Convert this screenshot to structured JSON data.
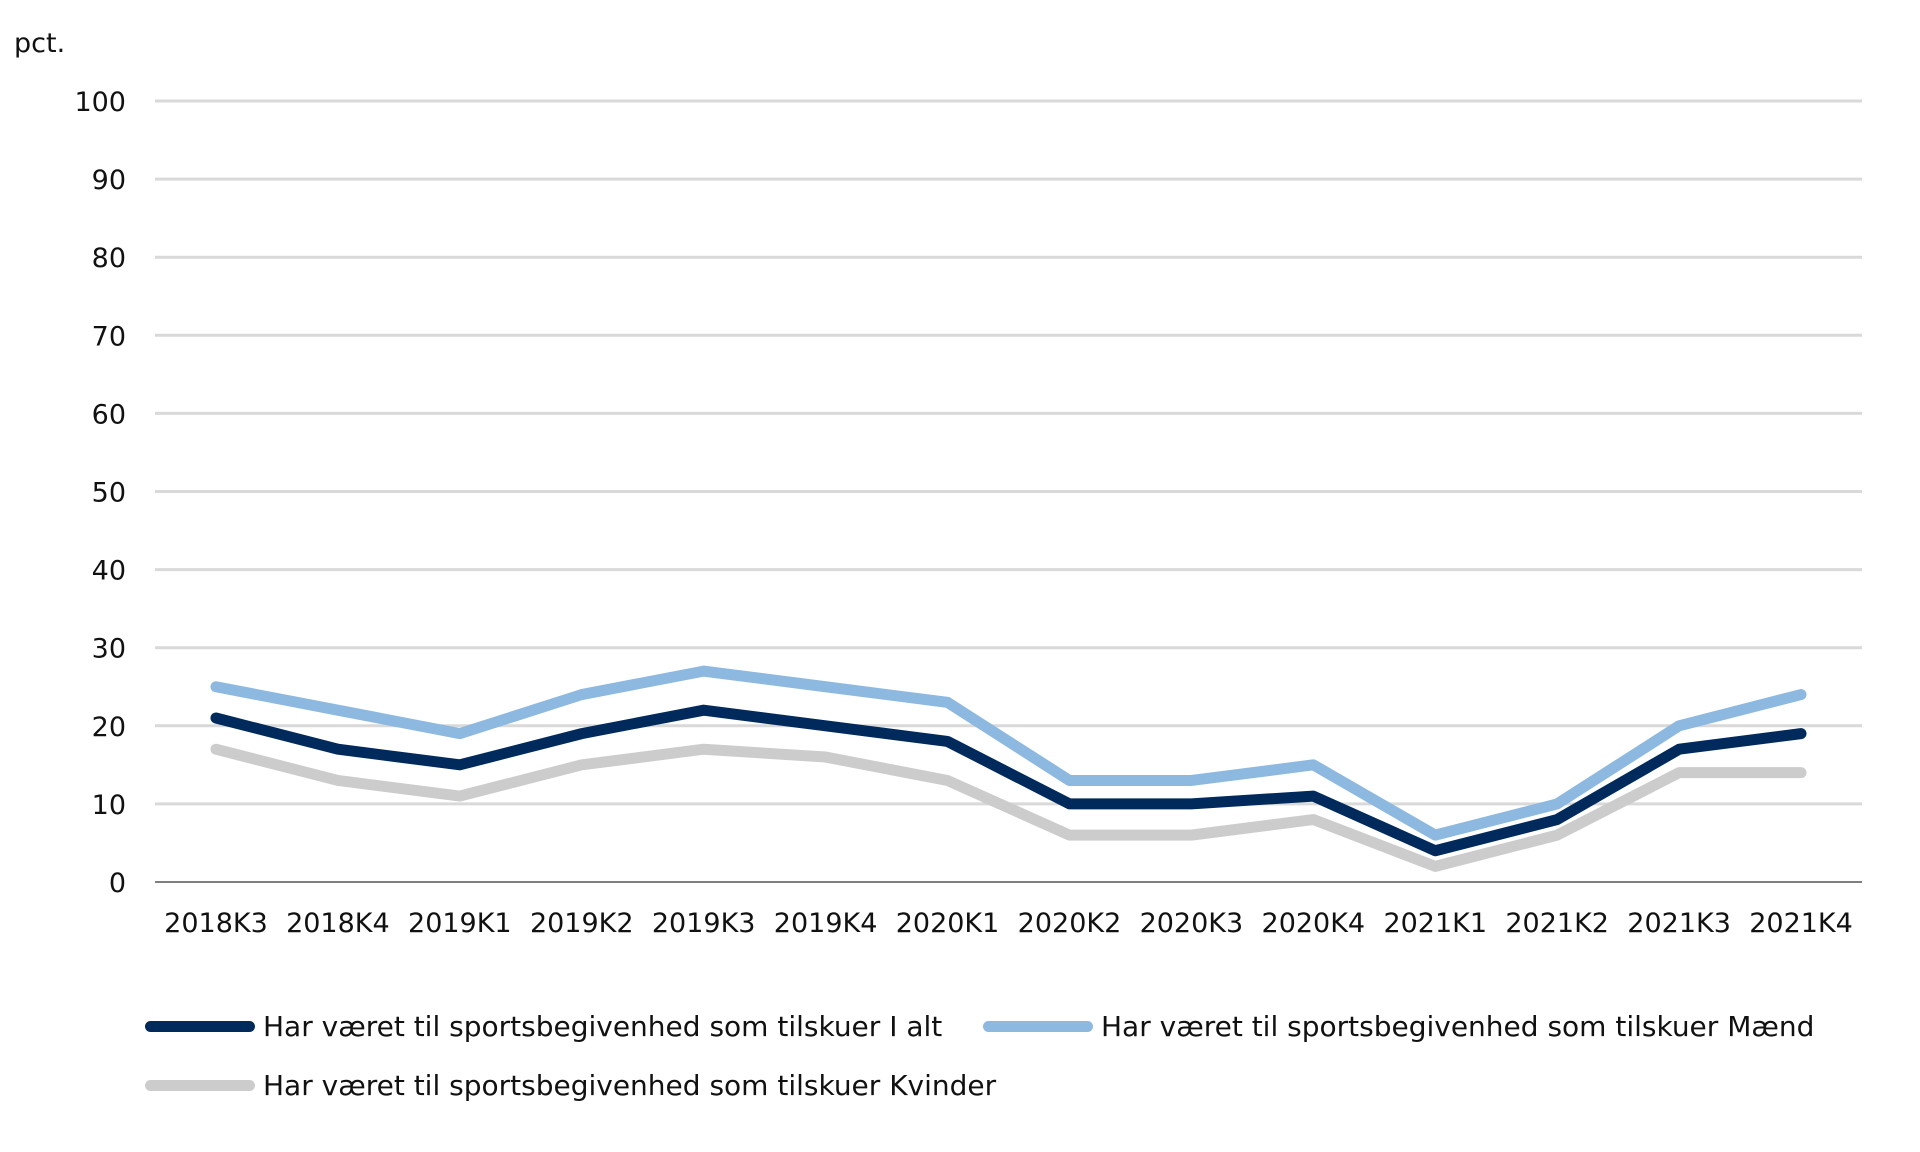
{
  "chart_data": {
    "type": "line",
    "ylabel": "pct.",
    "ylim": [
      0,
      100
    ],
    "yticks": [
      0,
      10,
      20,
      30,
      40,
      50,
      60,
      70,
      80,
      90,
      100
    ],
    "categories": [
      "2018K3",
      "2018K4",
      "2019K1",
      "2019K2",
      "2019K3",
      "2019K4",
      "2020K1",
      "2020K2",
      "2020K3",
      "2020K4",
      "2021K1",
      "2021K2",
      "2021K3",
      "2021K4"
    ],
    "grid": true,
    "legend_position": "bottom",
    "series": [
      {
        "name": "Har været til sportsbegivenhed som tilskuer I alt",
        "color": "#002A5C",
        "values": [
          21,
          17,
          15,
          19,
          22,
          20,
          18,
          10,
          10,
          11,
          4,
          8,
          17,
          19
        ]
      },
      {
        "name": "Har været til sportsbegivenhed som tilskuer Mænd",
        "color": "#8DB8E0",
        "values": [
          25,
          22,
          19,
          24,
          27,
          25,
          23,
          13,
          13,
          15,
          6,
          10,
          20,
          24
        ]
      },
      {
        "name": "Har været til sportsbegivenhed som tilskuer Kvinder",
        "color": "#CCCCCC",
        "values": [
          17,
          13,
          11,
          15,
          17,
          16,
          13,
          6,
          6,
          8,
          2,
          6,
          14,
          14
        ]
      }
    ]
  }
}
